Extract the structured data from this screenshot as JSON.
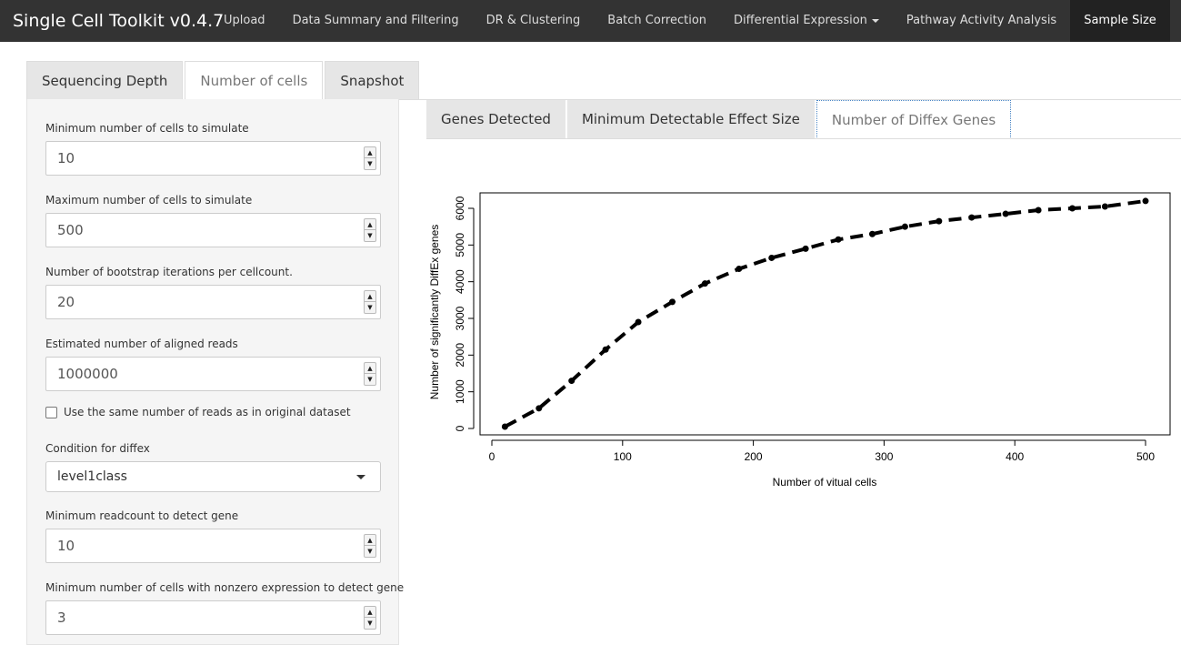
{
  "navbar": {
    "brand": "Single Cell Toolkit v0.4.7",
    "items": [
      "Upload",
      "Data Summary and Filtering",
      "DR & Clustering",
      "Batch Correction",
      "Differential Expression",
      "Pathway Activity Analysis",
      "Sample Size"
    ]
  },
  "main_tabs": [
    "Sequencing Depth",
    "Number of cells",
    "Snapshot"
  ],
  "sidebar": {
    "min_cells_label": "Minimum number of cells to simulate",
    "min_cells_value": "10",
    "max_cells_label": "Maximum number of cells to simulate",
    "max_cells_value": "500",
    "bootstrap_label": "Number of bootstrap iterations per cellcount.",
    "bootstrap_value": "20",
    "reads_label": "Estimated number of aligned reads",
    "reads_value": "1000000",
    "same_reads_label": "Use the same number of reads as in original dataset",
    "condition_label": "Condition for diffex",
    "condition_value": "level1class",
    "min_readcount_label": "Minimum readcount to detect gene",
    "min_readcount_value": "10",
    "min_nonzero_label": "Minimum number of cells with nonzero expression to detect gene",
    "min_nonzero_value": "3"
  },
  "sub_tabs": [
    "Genes Detected",
    "Minimum Detectable Effect Size",
    "Number of Diffex Genes"
  ],
  "chart_data": {
    "type": "line",
    "title": "",
    "xlabel": "Number of vitual cells",
    "ylabel": "Number of significantly DiffEx genes",
    "xlim": [
      0,
      500
    ],
    "ylim": [
      0,
      6000
    ],
    "x_ticks": [
      0,
      100,
      200,
      300,
      400,
      500
    ],
    "y_ticks": [
      0,
      1000,
      2000,
      3000,
      4000,
      5000,
      6000
    ],
    "x": [
      10,
      36,
      61,
      87,
      112,
      138,
      163,
      189,
      214,
      240,
      265,
      291,
      316,
      342,
      367,
      393,
      418,
      444,
      469,
      500
    ],
    "y": [
      50,
      550,
      1300,
      2150,
      2900,
      3450,
      3950,
      4350,
      4650,
      4900,
      5150,
      5300,
      5500,
      5650,
      5750,
      5850,
      5950,
      6000,
      6050,
      6200
    ]
  }
}
